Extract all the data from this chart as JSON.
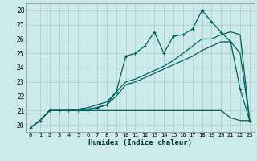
{
  "xlabel": "Humidex (Indice chaleur)",
  "background_color": "#cceaea",
  "grid_color": "#aacccc",
  "line_color": "#006060",
  "xlim": [
    -0.5,
    23.5
  ],
  "ylim": [
    19.5,
    28.5
  ],
  "xticks": [
    0,
    1,
    2,
    3,
    4,
    5,
    6,
    7,
    8,
    9,
    10,
    11,
    12,
    13,
    14,
    15,
    16,
    17,
    18,
    19,
    20,
    21,
    22,
    23
  ],
  "yticks": [
    20,
    21,
    22,
    23,
    24,
    25,
    26,
    27,
    28
  ],
  "line_flat": [
    19.8,
    20.3,
    21.0,
    21.0,
    21.0,
    21.0,
    21.0,
    21.0,
    21.0,
    21.0,
    21.0,
    21.0,
    21.0,
    21.0,
    21.0,
    21.0,
    21.0,
    21.0,
    21.0,
    21.0,
    21.0,
    20.5,
    20.3,
    20.3
  ],
  "line_zigzag": [
    19.8,
    20.3,
    21.0,
    21.0,
    21.0,
    21.0,
    21.0,
    21.2,
    21.4,
    22.3,
    24.8,
    25.0,
    25.5,
    26.5,
    25.0,
    26.2,
    26.3,
    26.7,
    28.0,
    27.2,
    26.5,
    25.8,
    22.5,
    20.3
  ],
  "line_upper": [
    19.8,
    20.3,
    21.0,
    21.0,
    21.0,
    21.1,
    21.2,
    21.4,
    21.6,
    22.3,
    23.0,
    23.2,
    23.5,
    23.8,
    24.1,
    24.5,
    25.0,
    25.5,
    26.0,
    26.0,
    26.3,
    26.5,
    26.3,
    20.3
  ],
  "line_lower": [
    19.8,
    20.3,
    21.0,
    21.0,
    21.0,
    21.0,
    21.1,
    21.2,
    21.4,
    22.0,
    22.8,
    23.0,
    23.3,
    23.6,
    23.9,
    24.2,
    24.5,
    24.8,
    25.2,
    25.5,
    25.8,
    25.8,
    25.0,
    20.3
  ]
}
